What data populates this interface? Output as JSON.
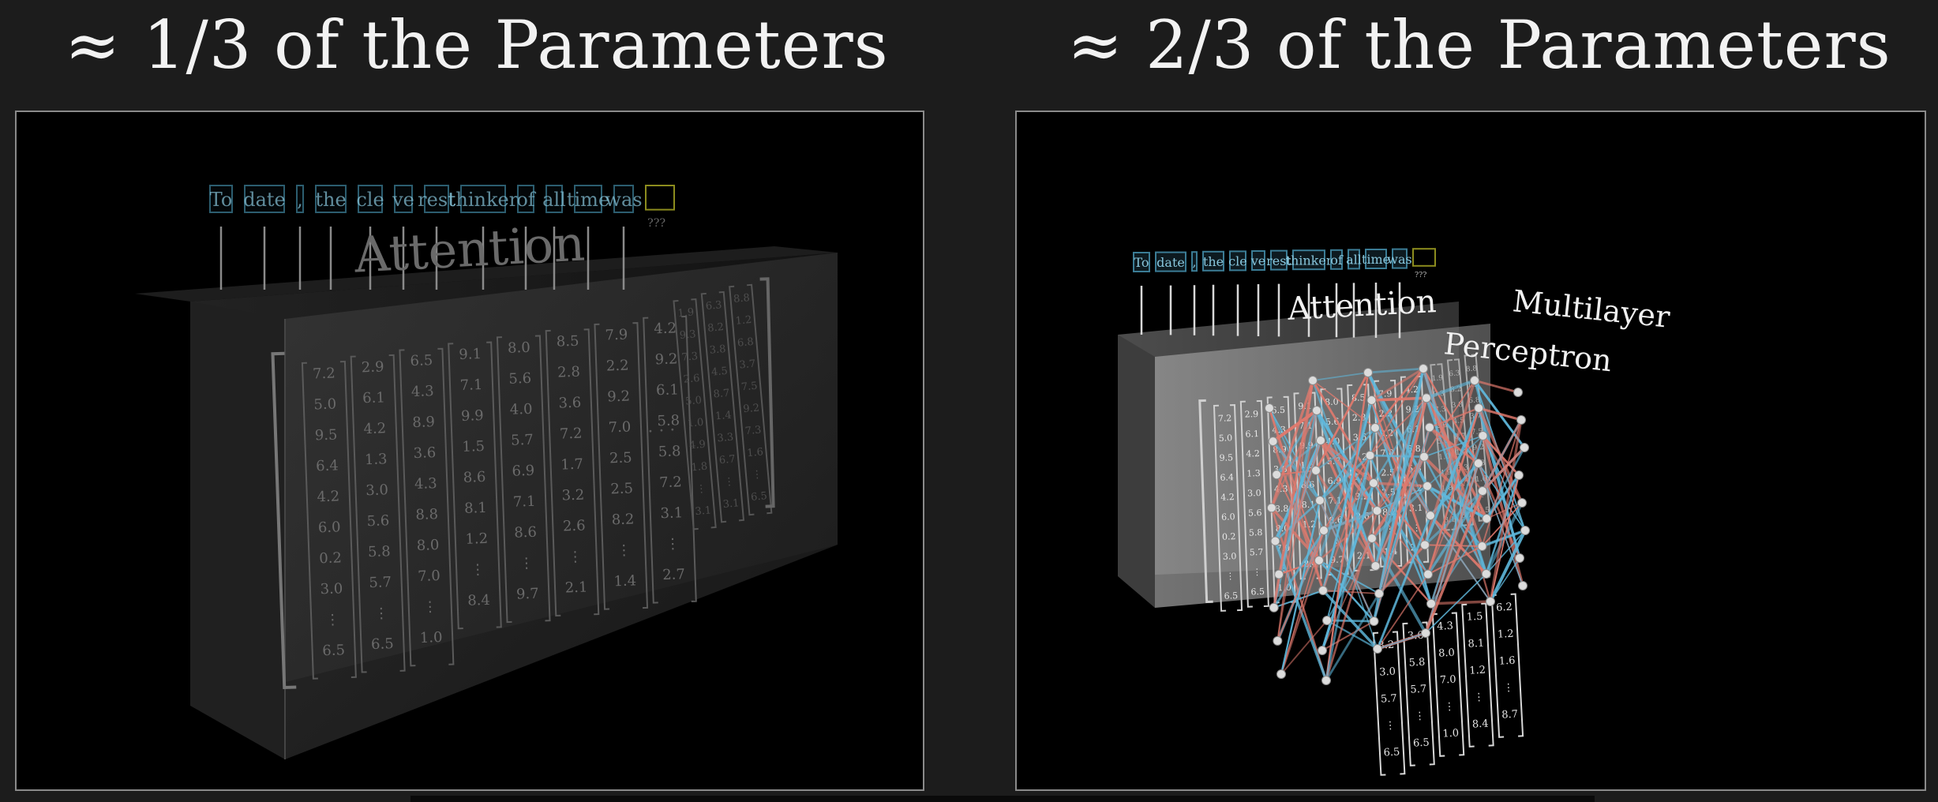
{
  "headings": {
    "left": "≈ 1/3 of the Parameters",
    "right": "≈ 2/3 of the Parameters"
  },
  "tokens": [
    "To",
    "date",
    ",",
    "the",
    "cle",
    "ve",
    "rest",
    "thinker",
    "of",
    "all",
    "time",
    "was",
    "???"
  ],
  "labels": {
    "attention": "Attention",
    "mlp_line1": "Multilayer",
    "mlp_line2": "Perceptron",
    "ellipsis": "· · ·"
  },
  "matrix_columns": [
    [
      "7.2",
      "5.0",
      "9.5",
      "6.4",
      "4.2",
      "6.0",
      "0.2",
      "3.0",
      "⋮",
      "6.5"
    ],
    [
      "2.9",
      "6.1",
      "4.2",
      "1.3",
      "3.0",
      "5.6",
      "5.8",
      "5.7",
      "⋮",
      "6.5"
    ],
    [
      "6.5",
      "4.3",
      "8.9",
      "3.6",
      "4.3",
      "8.8",
      "8.0",
      "7.0",
      "⋮",
      "1.0"
    ],
    [
      "9.1",
      "7.1",
      "9.9",
      "1.5",
      "8.6",
      "8.1",
      "1.2",
      "⋮",
      "8.4"
    ],
    [
      "8.0",
      "5.6",
      "4.0",
      "5.7",
      "6.9",
      "7.1",
      "8.6",
      "⋮",
      "9.7"
    ],
    [
      "8.5",
      "2.8",
      "3.6",
      "7.2",
      "1.7",
      "3.2",
      "2.6",
      "⋮",
      "2.1"
    ],
    [
      "7.9",
      "2.2",
      "9.2",
      "7.0",
      "2.5",
      "2.5",
      "8.2",
      "⋮",
      "1.4"
    ],
    [
      "4.2",
      "9.2",
      "6.1",
      "5.8",
      "5.8",
      "7.2",
      "3.1",
      "⋮",
      "2.7"
    ]
  ],
  "matrix_columns_tail": [
    [
      "1.9",
      "9.3",
      "7.3",
      "2.6",
      "5.0",
      "1.0",
      "4.9",
      "1.8",
      "⋮",
      "3.1"
    ],
    [
      "6.3",
      "8.2",
      "3.8",
      "4.5",
      "8.7",
      "1.4",
      "3.3",
      "6.7",
      "⋮",
      "3.1"
    ],
    [
      "8.8",
      "1.2",
      "6.8",
      "3.7",
      "7.5",
      "9.2",
      "7.3",
      "1.6",
      "⋮",
      "6.5"
    ]
  ],
  "front_columns": [
    [
      "8.2",
      "3.0",
      "5.7",
      "⋮",
      "6.5"
    ],
    [
      "3.6",
      "5.8",
      "5.7",
      "⋮",
      "6.5"
    ],
    [
      "4.3",
      "8.0",
      "7.0",
      "⋮",
      "1.0"
    ],
    [
      "1.5",
      "8.1",
      "1.2",
      "⋮",
      "8.4"
    ],
    [
      "6.2",
      "1.2",
      "1.6",
      "⋮",
      "8.7"
    ]
  ],
  "colors": {
    "background": "#1c1c1c",
    "panel": "#000000",
    "panel_border": "#8a8a8a",
    "token_border": "#3b7c95",
    "token_text": "#88c6dc",
    "unknown_token": "#8c8c1e",
    "edge_blue": "#5fb8dc",
    "edge_red": "#e07a6e",
    "node": "#dcdcdc"
  }
}
